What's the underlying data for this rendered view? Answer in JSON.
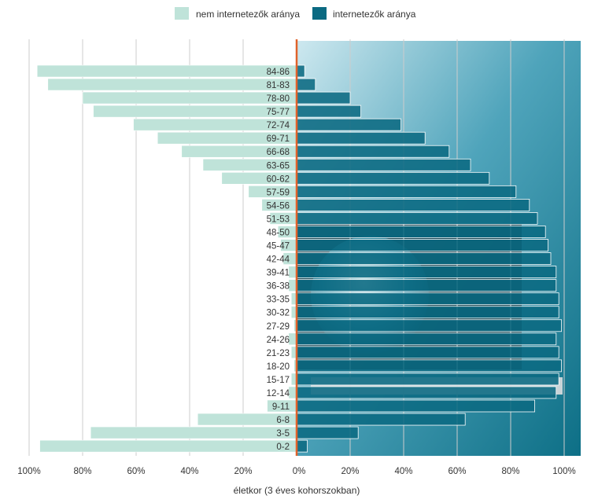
{
  "chart_data": {
    "type": "bar",
    "orientation": "horizontal-diverging",
    "legend": [
      {
        "name": "nem internetezők aránya",
        "color": "#bfe3d9"
      },
      {
        "name": "internetezők aránya",
        "color": "#0b6a82"
      }
    ],
    "legend_position": "top",
    "xlabel": "életkor (3 éves kohorszokban)",
    "x_ticks_left": [
      "100%",
      "80%",
      "60%",
      "40%",
      "20%"
    ],
    "x_ticks_right": [
      "0%",
      "20%",
      "40%",
      "60%",
      "80%",
      "100%"
    ],
    "xlim": [
      -100,
      100
    ],
    "grid": true,
    "categories": [
      "84-86",
      "81-83",
      "78-80",
      "75-77",
      "72-74",
      "69-71",
      "66-68",
      "63-65",
      "60-62",
      "57-59",
      "54-56",
      "51-53",
      "48-50",
      "45-47",
      "42-44",
      "39-41",
      "36-38",
      "33-35",
      "30-32",
      "27-29",
      "24-26",
      "21-23",
      "18-20",
      "15-17",
      "12-14",
      "9-11",
      "6-8",
      "3-5",
      "0-2"
    ],
    "series": [
      {
        "name": "nem internetezők aránya",
        "values": [
          97,
          93,
          80,
          76,
          61,
          52,
          43,
          35,
          28,
          18,
          13,
          10,
          7,
          6,
          5,
          3,
          3,
          2,
          2,
          1,
          3,
          2,
          1,
          2,
          3,
          11,
          37,
          77,
          96
        ]
      },
      {
        "name": "internetezők aránya",
        "values": [
          3,
          7,
          20,
          24,
          39,
          48,
          57,
          65,
          72,
          82,
          87,
          90,
          93,
          94,
          95,
          97,
          97,
          98,
          98,
          99,
          97,
          98,
          99,
          98,
          97,
          89,
          63,
          23,
          4
        ]
      }
    ]
  },
  "colors": {
    "non_internet": "#bfe3d9",
    "internet": "#0b6a82",
    "axis_line": "#e0622a",
    "grid": "#cccccc",
    "panel_background": "#8fc9d8"
  }
}
